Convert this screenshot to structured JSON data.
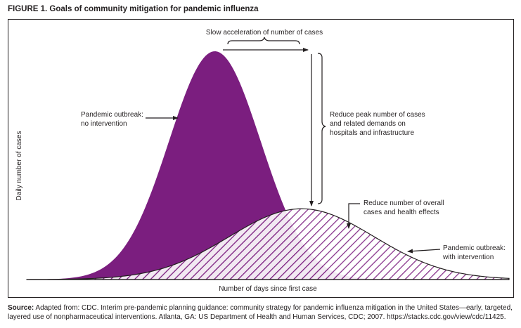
{
  "figure_title": "FIGURE 1. Goals of community mitigation for pandemic influenza",
  "source": {
    "label": "Source:",
    "text": "Adapted from: CDC. Interim pre-pandemic planning guidance: community strategy for pandemic influenza mitigation in the United States—early, targeted, layered use of nonpharmaceutical interventions. Atlanta, GA: US Department of Health and Human Services, CDC; 2007. https://stacks.cdc.gov/view/cdc/11425."
  },
  "colors": {
    "no_intervention_fill": "#7b1e7f",
    "intervention_hatch": "#7b1e7f",
    "ink": "#231f20"
  },
  "chart_data": {
    "type": "area",
    "title": "",
    "xlabel": "Number of days since first case",
    "ylabel": "Daily number of cases",
    "series": [
      {
        "name": "Pandemic outbreak: no intervention",
        "peak": 1.0,
        "peak_position": 0.39,
        "spread": 0.095,
        "style": "solid-fill"
      },
      {
        "name": "Pandemic outbreak: with intervention",
        "peak": 0.31,
        "peak_position": 0.57,
        "spread": 0.15,
        "style": "hatched"
      }
    ],
    "annotations": {
      "no_intervention": [
        "Pandemic outbreak:",
        "no intervention"
      ],
      "with_intervention": [
        "Pandemic outbreak:",
        "with intervention"
      ],
      "slow_acceleration": "Slow acceleration of number of cases",
      "reduce_peak": [
        "Reduce peak number of cases",
        "and related demands on",
        "hospitals and infrastructure"
      ],
      "reduce_overall": [
        "Reduce number of overall",
        "cases and health effects"
      ]
    },
    "grid": false,
    "legend": "none"
  }
}
